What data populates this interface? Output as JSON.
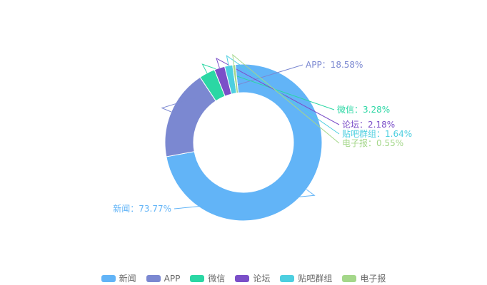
{
  "chart_data": {
    "type": "pie",
    "variant": "donut",
    "title": "",
    "legend_position": "bottom",
    "separator": "：",
    "series": [
      {
        "name": "新闻",
        "value": 73.77,
        "label": "73.77%",
        "color": "#62b4f7"
      },
      {
        "name": "APP",
        "value": 18.58,
        "label": "18.58%",
        "color": "#7b88d1"
      },
      {
        "name": "微信",
        "value": 3.28,
        "label": "3.28%",
        "color": "#2bd7a4"
      },
      {
        "name": "论坛",
        "value": 2.18,
        "label": "2.18%",
        "color": "#7b4fc8"
      },
      {
        "name": "贴吧群组",
        "value": 1.64,
        "label": "1.64%",
        "color": "#4dcfe0"
      },
      {
        "name": "电子报",
        "value": 0.55,
        "label": "0.55%",
        "color": "#a4d78a"
      }
    ]
  }
}
